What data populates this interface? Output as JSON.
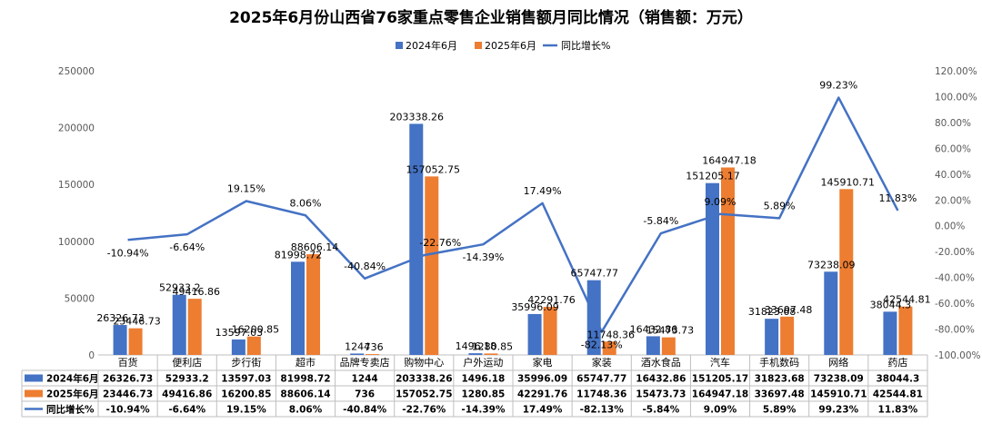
{
  "chart_data": {
    "type": "bar",
    "title": "2025年6月份山西省76家重点零售企业销售额月同比情况（销售额：万元）",
    "categories": [
      "百货",
      "便利店",
      "步行街",
      "超市",
      "品牌专卖店",
      "购物中心",
      "户外运动",
      "家电",
      "家装",
      "酒水食品",
      "汽车",
      "手机数码",
      "网络",
      "药店"
    ],
    "series": [
      {
        "name": "2024年6月",
        "color": "#4472C4",
        "values": [
          26326.73,
          52933.2,
          13597.03,
          81998.72,
          1244,
          203338.26,
          1496.18,
          35996.09,
          65747.77,
          16432.86,
          151205.17,
          31823.68,
          73238.09,
          38044.3
        ],
        "labels": [
          "26326.73",
          "52933.2",
          "13597.03",
          "81998.72",
          "1244",
          "203338.26",
          "1496.18",
          "35996.09",
          "65747.77",
          "16432.86",
          "151205.17",
          "31823.68",
          "73238.09",
          "38044.3"
        ]
      },
      {
        "name": "2025年6月",
        "color": "#ED7D31",
        "values": [
          23446.73,
          49416.86,
          16200.85,
          88606.14,
          736,
          157052.75,
          1280.85,
          42291.76,
          11748.36,
          15473.73,
          164947.18,
          33697.48,
          145910.71,
          42544.81
        ],
        "labels": [
          "23446.73",
          "49416.86",
          "16200.85",
          "88606.14",
          "736",
          "157052.75",
          "1280.85",
          "42291.76",
          "11748.36",
          "15473.73",
          "164947.18",
          "33697.48",
          "145910.71",
          "42544.81"
        ]
      },
      {
        "name": "同比增长%",
        "type": "line",
        "axis": "right",
        "color": "#4472C4",
        "values": [
          -10.94,
          -6.64,
          19.15,
          8.06,
          -40.84,
          -22.76,
          -14.39,
          17.49,
          -82.13,
          -5.84,
          9.09,
          5.89,
          99.23,
          11.83
        ],
        "labels": [
          "-10.94%",
          "-6.64%",
          "19.15%",
          "8.06%",
          "-40.84%",
          "-22.76%",
          "-14.39%",
          "17.49%",
          "-82.13%",
          "-5.84%",
          "9.09%",
          "5.89%",
          "99.23%",
          "11.83%"
        ]
      }
    ],
    "left_axis": {
      "ylim": [
        0,
        250000
      ],
      "ticks": [
        "0",
        "50000",
        "100000",
        "150000",
        "200000",
        "250000"
      ]
    },
    "right_axis": {
      "ylim": [
        -100,
        120
      ],
      "ticks": [
        "-100.00%",
        "-80.00%",
        "-60.00%",
        "-40.00%",
        "-20.00%",
        "0.00%",
        "20.00%",
        "40.00%",
        "60.00%",
        "80.00%",
        "100.00%",
        "120.00%"
      ]
    },
    "legend_position": "top",
    "grid": false,
    "data_table": true
  }
}
